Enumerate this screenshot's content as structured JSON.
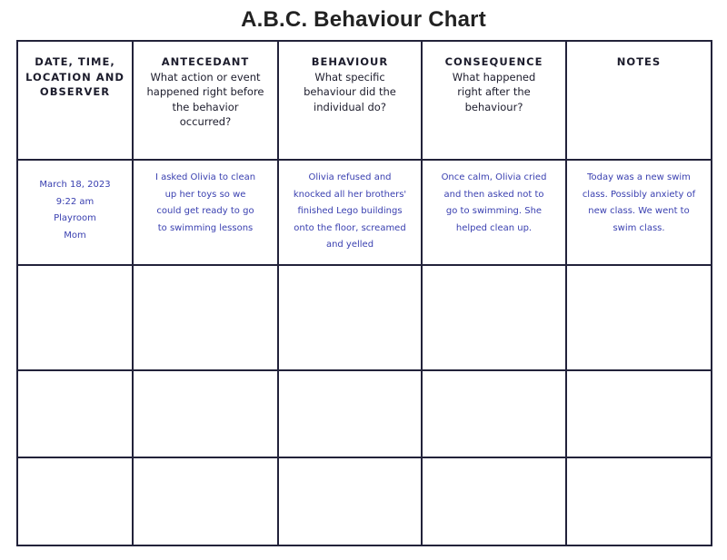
{
  "title": "A.B.C. Behaviour Chart",
  "columns": [
    {
      "heading": "DATE, TIME, LOCATION AND OBSERVER",
      "question": ""
    },
    {
      "heading": "ANTECEDANT",
      "question": "What action or event happened right before the behavior occurred?"
    },
    {
      "heading": "BEHAVIOUR",
      "question": "What specific behaviour did the individual do?"
    },
    {
      "heading": "CONSEQUENCE",
      "question": "What happened right after the behaviour?"
    },
    {
      "heading": "NOTES",
      "question": ""
    }
  ],
  "rows": [
    {
      "date_time_location_observer": [
        "March 18, 2023",
        "9:22 am",
        "Playroom",
        "Mom"
      ],
      "antecedant": "I asked Olivia to clean up her toys so we could get ready to go to swimming lessons",
      "behaviour": "Olivia refused and knocked all her brothers' finished Lego buildings onto the floor, screamed and yelled",
      "consequence": "Once calm, Olivia cried and then asked not to go to swimming. She helped clean up.",
      "notes": "Today was a new swim class. Possibly anxiety of new class. We went to swim class."
    }
  ],
  "empty_rows": 3,
  "colors": {
    "grid": "#22223a",
    "handwriting": "#3a40b0"
  }
}
